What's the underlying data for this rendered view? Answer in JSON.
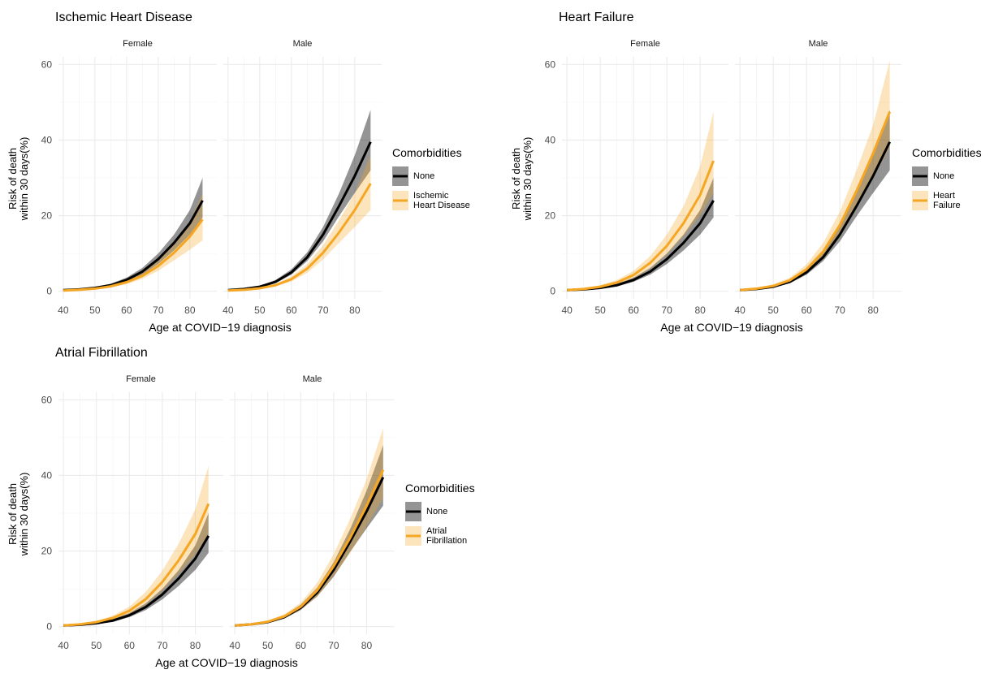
{
  "chart_data": [
    {
      "type": "line",
      "title": "Ischemic Heart Disease",
      "x_label": "Age at COVID−19 diagnosis",
      "y_label": "Risk of death\nwithin 30 days(%)",
      "legend_title": "Comorbidities",
      "xlim": [
        38.5,
        88.5
      ],
      "ylim": [
        -2,
        62
      ],
      "xticks": [
        40,
        50,
        60,
        70,
        80
      ],
      "yticks": [
        0,
        20,
        40,
        60
      ],
      "grid": true,
      "series": [
        {
          "name": "None",
          "color": "#000000"
        },
        {
          "name": "Ischemic\nHeart Disease",
          "color": "#f5a623"
        }
      ],
      "panels": [
        {
          "facet": "Female",
          "x": [
            40,
            45,
            50,
            55,
            60,
            65,
            70,
            75,
            80,
            84
          ],
          "series": [
            {
              "values": [
                0.3,
                0.5,
                0.9,
                1.6,
                3.0,
                5.2,
                8.5,
                12.8,
                18.0,
                24.0
              ],
              "lower": [
                0.2,
                0.4,
                0.7,
                1.3,
                2.5,
                4.4,
                7.2,
                10.8,
                15,
                19.5
              ],
              "upper": [
                0.4,
                0.6,
                1.1,
                2.0,
                3.6,
                6.2,
                10.0,
                15.0,
                21.5,
                30.0
              ]
            },
            {
              "values": [
                0.2,
                0.4,
                0.7,
                1.3,
                2.4,
                4.1,
                6.7,
                10.2,
                14.5,
                19.0
              ],
              "lower": [
                0.1,
                0.3,
                0.5,
                1.0,
                1.9,
                3.3,
                5.4,
                8.2,
                11,
                13.5
              ],
              "upper": [
                0.3,
                0.5,
                0.9,
                1.7,
                3.0,
                5.2,
                8.5,
                13,
                18.5,
                26
              ]
            }
          ]
        },
        {
          "facet": "Male",
          "x": [
            40,
            45,
            50,
            55,
            60,
            65,
            70,
            75,
            80,
            85
          ],
          "series": [
            {
              "values": [
                0.3,
                0.6,
                1.2,
                2.5,
                5.0,
                9.0,
                15.0,
                22.5,
                30.5,
                39.5
              ],
              "lower": [
                0.2,
                0.5,
                1.0,
                2.1,
                4.4,
                8.0,
                13.2,
                19.8,
                26,
                32
              ],
              "upper": [
                0.4,
                0.7,
                1.4,
                3.0,
                5.8,
                10.3,
                17.0,
                25.8,
                36,
                48
              ]
            },
            {
              "values": [
                0.2,
                0.4,
                0.8,
                1.6,
                3.2,
                6.0,
                10.2,
                15.5,
                21.5,
                28.5
              ],
              "lower": [
                0.1,
                0.3,
                0.6,
                1.3,
                2.6,
                4.9,
                8.4,
                12.8,
                17,
                21.5
              ],
              "upper": [
                0.3,
                0.5,
                1.0,
                2.0,
                3.9,
                7.2,
                12.2,
                18.7,
                26,
                36
              ]
            }
          ]
        }
      ]
    },
    {
      "type": "line",
      "title": "Heart Failure",
      "x_label": "Age at COVID−19 diagnosis",
      "y_label": "Risk of death\nwithin 30 days(%)",
      "legend_title": "Comorbidities",
      "xlim": [
        38.5,
        88.5
      ],
      "ylim": [
        -2,
        62
      ],
      "xticks": [
        40,
        50,
        60,
        70,
        80
      ],
      "yticks": [
        0,
        20,
        40,
        60
      ],
      "grid": true,
      "series": [
        {
          "name": "None",
          "color": "#000000"
        },
        {
          "name": "Heart\nFailure",
          "color": "#f5a623"
        }
      ],
      "panels": [
        {
          "facet": "Female",
          "x": [
            40,
            45,
            50,
            55,
            60,
            65,
            70,
            75,
            80,
            84
          ],
          "series": [
            {
              "values": [
                0.3,
                0.5,
                0.9,
                1.6,
                3.0,
                5.2,
                8.5,
                12.8,
                18.0,
                24.0
              ],
              "lower": [
                0.2,
                0.4,
                0.7,
                1.3,
                2.5,
                4.4,
                7.2,
                10.8,
                15,
                19.5
              ],
              "upper": [
                0.4,
                0.6,
                1.1,
                2.0,
                3.6,
                6.2,
                10.0,
                15.0,
                21.5,
                30.0
              ]
            },
            {
              "values": [
                0.3,
                0.6,
                1.2,
                2.3,
                4.3,
                7.5,
                12.0,
                18.0,
                25.5,
                34.5
              ],
              "lower": [
                0.2,
                0.4,
                0.9,
                1.8,
                3.4,
                6.0,
                9.7,
                14.5,
                20,
                26
              ],
              "upper": [
                0.4,
                0.8,
                1.6,
                3.0,
                5.4,
                9.3,
                15,
                22.5,
                33,
                47.5
              ]
            }
          ]
        },
        {
          "facet": "Male",
          "x": [
            40,
            45,
            50,
            55,
            60,
            65,
            70,
            75,
            80,
            85
          ],
          "series": [
            {
              "values": [
                0.3,
                0.6,
                1.2,
                2.5,
                5.0,
                9.0,
                15.0,
                22.5,
                30.5,
                39.5
              ],
              "lower": [
                0.2,
                0.5,
                1.0,
                2.1,
                4.4,
                8.0,
                13.2,
                19.8,
                26,
                32
              ],
              "upper": [
                0.4,
                0.7,
                1.4,
                3.0,
                5.8,
                10.3,
                17.0,
                25.8,
                36,
                48
              ]
            },
            {
              "values": [
                0.3,
                0.7,
                1.4,
                2.9,
                5.8,
                10.5,
                17.5,
                26.5,
                36.5,
                47.5
              ],
              "lower": [
                0.2,
                0.5,
                1.1,
                2.3,
                4.7,
                8.6,
                14.5,
                22,
                30,
                38
              ],
              "upper": [
                0.4,
                0.9,
                1.8,
                3.6,
                7.1,
                12.8,
                21,
                32,
                44,
                61
              ]
            }
          ]
        }
      ]
    },
    {
      "type": "line",
      "title": "Atrial Fibrillation",
      "x_label": "Age at COVID−19 diagnosis",
      "y_label": "Risk of death\nwithin 30 days(%)",
      "legend_title": "Comorbidities",
      "xlim": [
        38.5,
        88.5
      ],
      "ylim": [
        -2,
        62
      ],
      "xticks": [
        40,
        50,
        60,
        70,
        80
      ],
      "yticks": [
        0,
        20,
        40,
        60
      ],
      "grid": true,
      "series": [
        {
          "name": "None",
          "color": "#000000"
        },
        {
          "name": "Atrial\nFibrillation",
          "color": "#f5a623"
        }
      ],
      "panels": [
        {
          "facet": "Female",
          "x": [
            40,
            45,
            50,
            55,
            60,
            65,
            70,
            75,
            80,
            84
          ],
          "series": [
            {
              "values": [
                0.3,
                0.5,
                0.9,
                1.6,
                3.0,
                5.2,
                8.5,
                12.8,
                18.0,
                24.0
              ],
              "lower": [
                0.2,
                0.4,
                0.7,
                1.3,
                2.5,
                4.4,
                7.2,
                10.8,
                15,
                19.5
              ],
              "upper": [
                0.4,
                0.6,
                1.1,
                2.0,
                3.6,
                6.2,
                10.0,
                15.0,
                21.5,
                30.0
              ]
            },
            {
              "values": [
                0.3,
                0.6,
                1.2,
                2.3,
                4.2,
                7.3,
                11.8,
                17.6,
                24.5,
                32.5
              ],
              "lower": [
                0.2,
                0.4,
                0.9,
                1.8,
                3.3,
                5.8,
                9.5,
                14,
                19,
                24.5
              ],
              "upper": [
                0.4,
                0.8,
                1.5,
                2.9,
                5.3,
                9.2,
                14.8,
                22,
                31,
                42.5
              ]
            }
          ]
        },
        {
          "facet": "Male",
          "x": [
            40,
            45,
            50,
            55,
            60,
            65,
            70,
            75,
            80,
            85
          ],
          "series": [
            {
              "values": [
                0.3,
                0.6,
                1.2,
                2.5,
                5.0,
                9.0,
                15.0,
                22.5,
                30.5,
                39.5
              ],
              "lower": [
                0.2,
                0.5,
                1.0,
                2.1,
                4.4,
                8.0,
                13.2,
                19.8,
                26,
                32
              ],
              "upper": [
                0.4,
                0.7,
                1.4,
                3.0,
                5.8,
                10.3,
                17.0,
                25.8,
                36,
                48
              ]
            },
            {
              "values": [
                0.3,
                0.6,
                1.3,
                2.7,
                5.3,
                9.6,
                16,
                23.5,
                32,
                41.5
              ],
              "lower": [
                0.2,
                0.5,
                1.0,
                2.2,
                4.4,
                8.0,
                13.3,
                19.5,
                26.5,
                34
              ],
              "upper": [
                0.4,
                0.8,
                1.6,
                3.3,
                6.3,
                11.6,
                19.2,
                28.5,
                39,
                52.5
              ]
            }
          ]
        }
      ]
    }
  ]
}
